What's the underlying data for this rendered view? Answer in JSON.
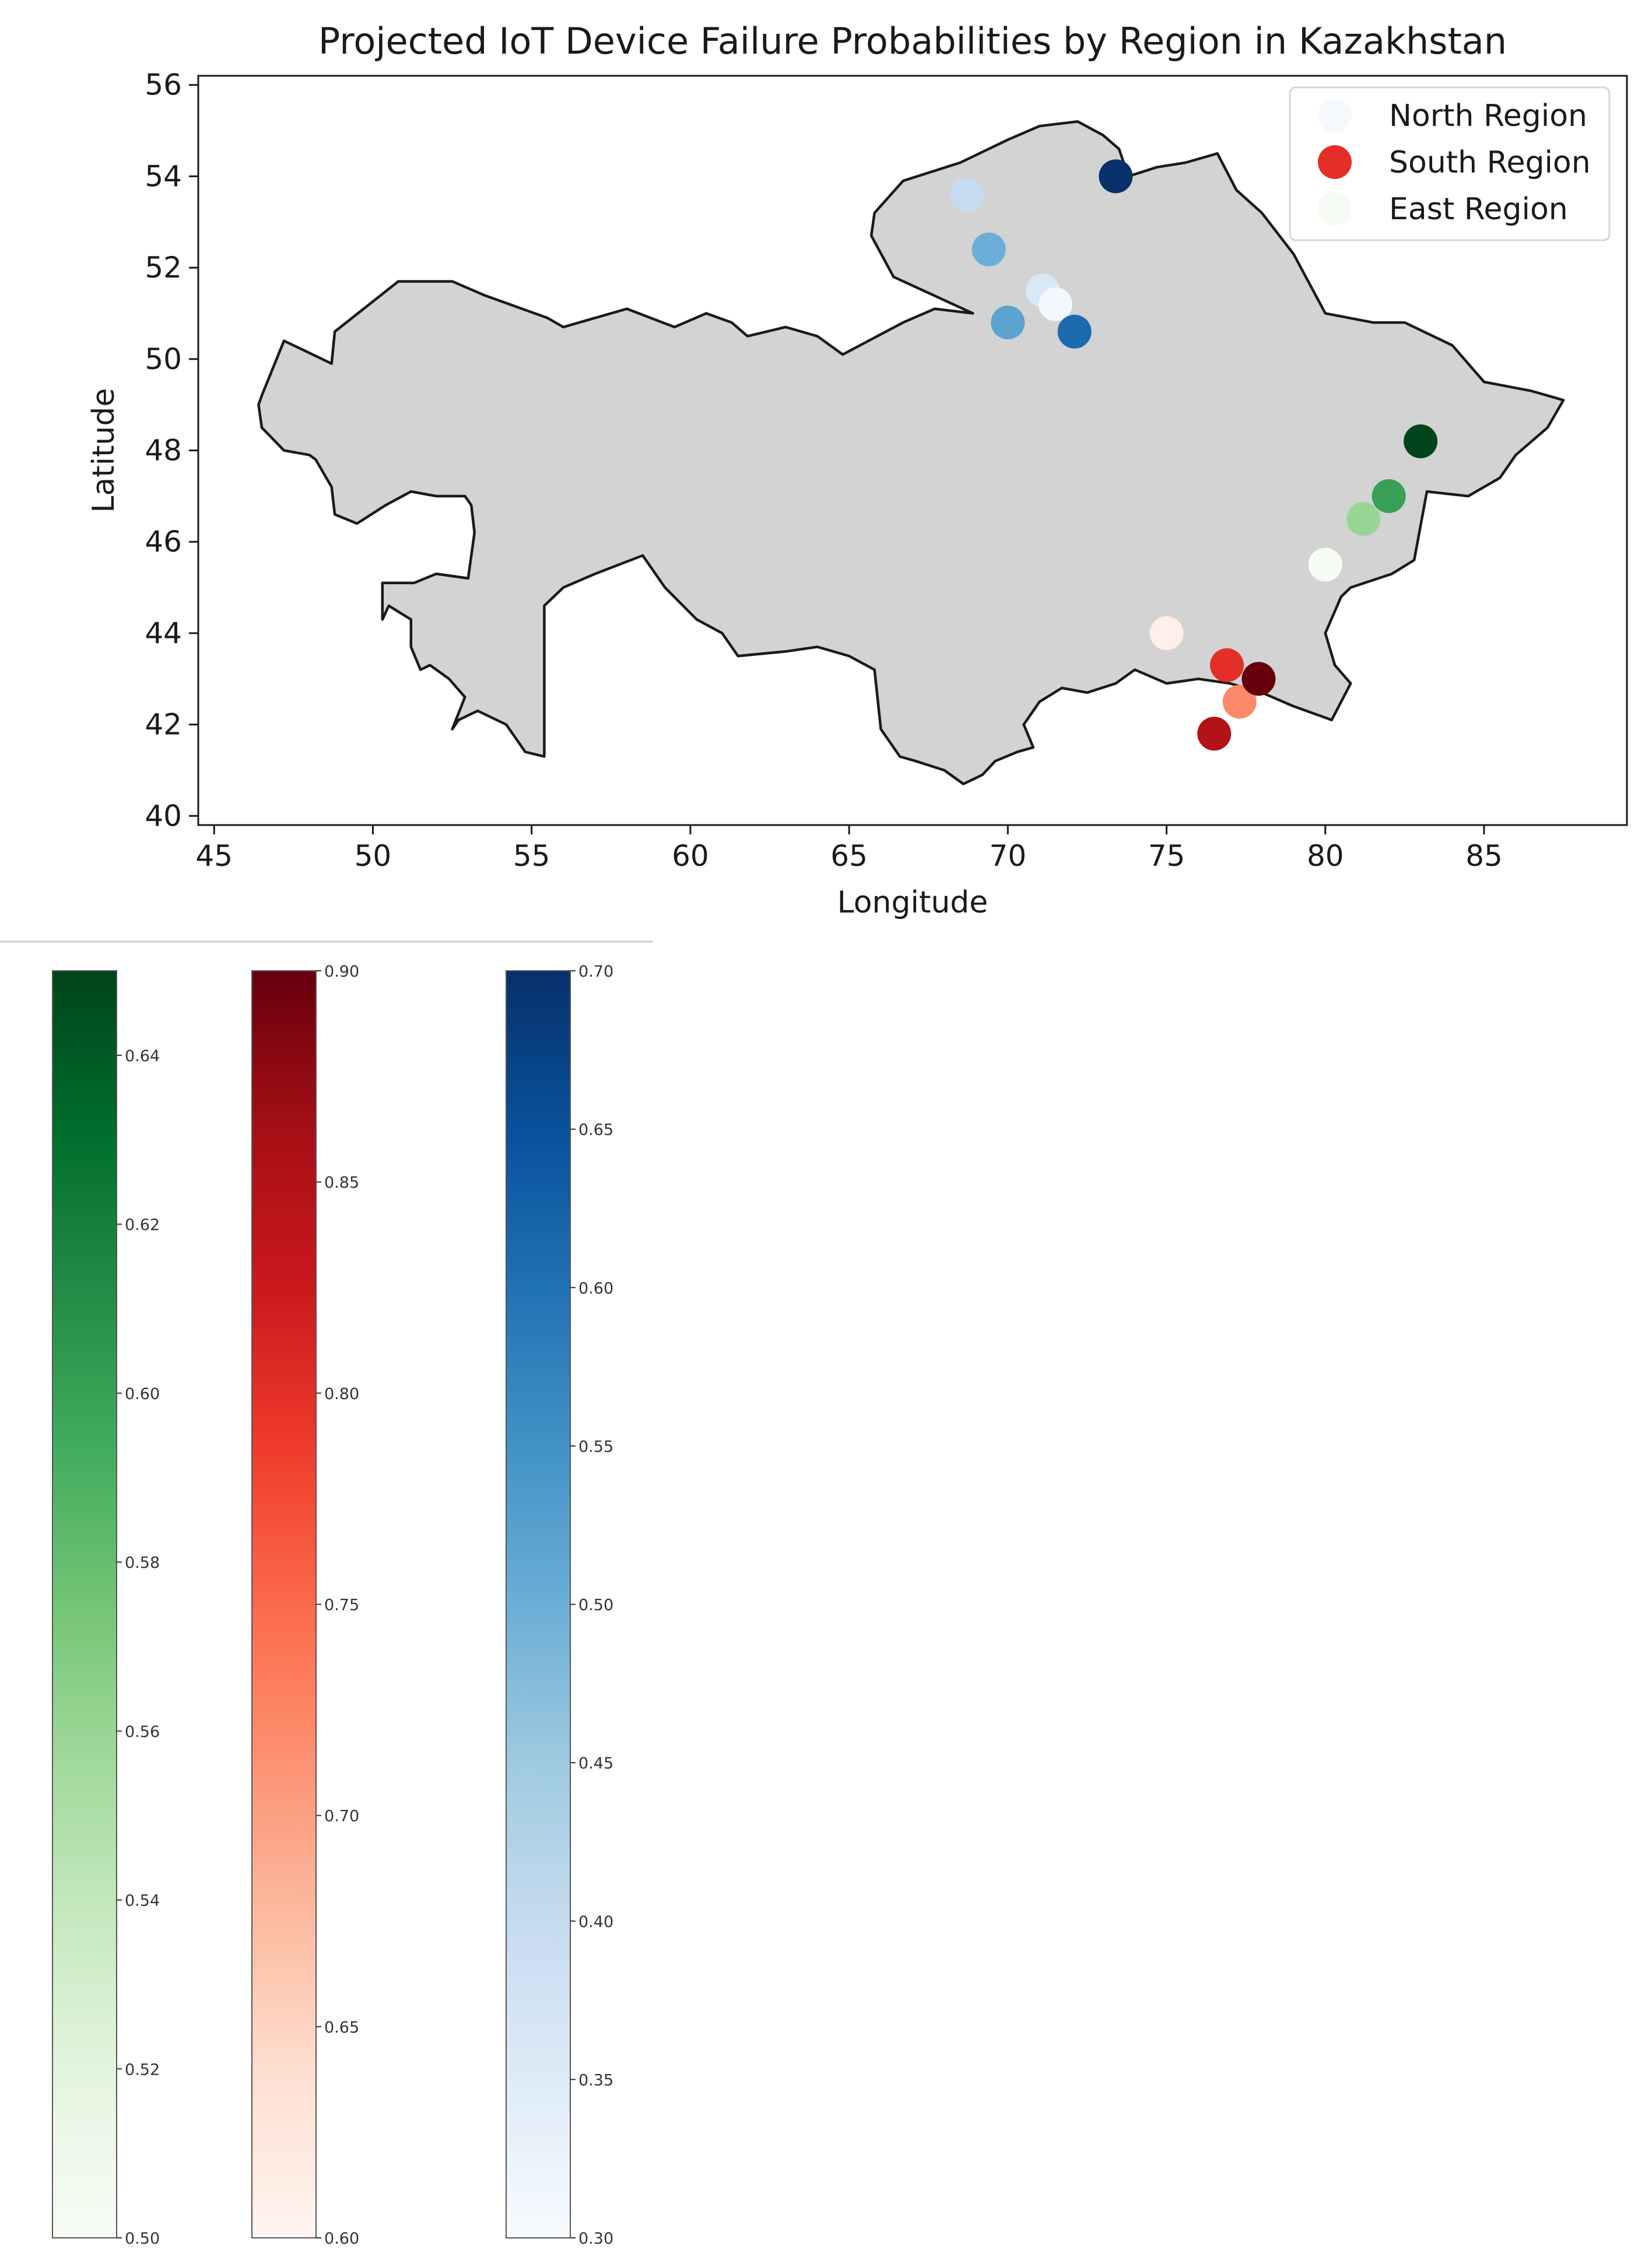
{
  "chart_data": [
    {
      "type": "scatter",
      "subtype": "geographic map",
      "title": "Projected IoT Device Failure Probabilities by Region in Kazakhstan",
      "xlabel": "Longitude",
      "ylabel": "Latitude",
      "xlim": [
        44.5,
        89.5
      ],
      "ylim": [
        39.8,
        56.2
      ],
      "xticks": [
        45,
        50,
        55,
        60,
        65,
        70,
        75,
        80,
        85
      ],
      "yticks": [
        40,
        42,
        44,
        46,
        48,
        50,
        52,
        54,
        56
      ],
      "grid": false,
      "legend_position": "top-right",
      "map_fill": "#d3d3d3",
      "map_stroke": "#1a1a1a",
      "outline": [
        [
          46.5,
          49.2
        ],
        [
          47.2,
          50.4
        ],
        [
          48.7,
          49.9
        ],
        [
          48.8,
          50.6
        ],
        [
          50.8,
          51.7
        ],
        [
          52.5,
          51.7
        ],
        [
          53.5,
          51.4
        ],
        [
          55.5,
          50.9
        ],
        [
          56.0,
          50.7
        ],
        [
          58.0,
          51.1
        ],
        [
          59.5,
          50.7
        ],
        [
          60.5,
          51.0
        ],
        [
          61.3,
          50.8
        ],
        [
          61.8,
          50.5
        ],
        [
          63.0,
          50.7
        ],
        [
          64.0,
          50.5
        ],
        [
          64.8,
          50.1
        ],
        [
          66.7,
          50.8
        ],
        [
          67.7,
          51.1
        ],
        [
          68.9,
          51.0
        ],
        [
          66.4,
          51.8
        ],
        [
          65.7,
          52.7
        ],
        [
          65.8,
          53.2
        ],
        [
          66.7,
          53.9
        ],
        [
          68.5,
          54.3
        ],
        [
          70.0,
          54.8
        ],
        [
          71.0,
          55.1
        ],
        [
          72.2,
          55.2
        ],
        [
          73.0,
          54.9
        ],
        [
          73.5,
          54.6
        ],
        [
          73.8,
          54.0
        ],
        [
          74.7,
          54.2
        ],
        [
          75.6,
          54.3
        ],
        [
          76.6,
          54.5
        ],
        [
          77.2,
          53.7
        ],
        [
          78.0,
          53.2
        ],
        [
          79.0,
          52.3
        ],
        [
          80.0,
          51.0
        ],
        [
          81.5,
          50.8
        ],
        [
          82.5,
          50.8
        ],
        [
          84.0,
          50.3
        ],
        [
          85.0,
          49.5
        ],
        [
          86.5,
          49.3
        ],
        [
          87.5,
          49.1
        ],
        [
          87.0,
          48.5
        ],
        [
          86.0,
          47.9
        ],
        [
          85.5,
          47.4
        ],
        [
          84.5,
          47.0
        ],
        [
          83.2,
          47.1
        ],
        [
          82.8,
          45.6
        ],
        [
          82.1,
          45.3
        ],
        [
          80.8,
          45.0
        ],
        [
          80.5,
          44.8
        ],
        [
          80.0,
          44.0
        ],
        [
          80.3,
          43.3
        ],
        [
          80.8,
          42.9
        ],
        [
          80.2,
          42.1
        ],
        [
          79.0,
          42.4
        ],
        [
          78.0,
          42.7
        ],
        [
          77.0,
          42.9
        ],
        [
          76.0,
          43.0
        ],
        [
          75.0,
          42.9
        ],
        [
          74.0,
          43.2
        ],
        [
          73.4,
          42.9
        ],
        [
          72.5,
          42.7
        ],
        [
          71.7,
          42.8
        ],
        [
          71.0,
          42.5
        ],
        [
          70.5,
          42.0
        ],
        [
          70.8,
          41.5
        ],
        [
          70.3,
          41.4
        ],
        [
          69.6,
          41.2
        ],
        [
          69.2,
          40.9
        ],
        [
          68.6,
          40.7
        ],
        [
          68.0,
          41.0
        ],
        [
          67.1,
          41.2
        ],
        [
          66.6,
          41.3
        ],
        [
          66.0,
          41.9
        ],
        [
          65.8,
          43.2
        ],
        [
          65.0,
          43.5
        ],
        [
          64.0,
          43.7
        ],
        [
          63.0,
          43.6
        ],
        [
          61.5,
          43.5
        ],
        [
          61.0,
          44.0
        ],
        [
          60.2,
          44.3
        ],
        [
          59.2,
          45.0
        ],
        [
          58.5,
          45.7
        ],
        [
          57.0,
          45.3
        ],
        [
          56.0,
          45.0
        ],
        [
          55.4,
          44.6
        ],
        [
          55.4,
          41.3
        ],
        [
          54.8,
          41.4
        ],
        [
          54.2,
          42.0
        ],
        [
          53.3,
          42.3
        ],
        [
          52.7,
          42.1
        ],
        [
          52.5,
          41.9
        ],
        [
          52.9,
          42.6
        ],
        [
          52.4,
          43.0
        ],
        [
          51.8,
          43.3
        ],
        [
          51.5,
          43.2
        ],
        [
          51.2,
          43.7
        ],
        [
          51.2,
          44.3
        ],
        [
          50.5,
          44.6
        ],
        [
          50.3,
          44.3
        ],
        [
          50.3,
          45.1
        ],
        [
          51.3,
          45.1
        ],
        [
          52.0,
          45.3
        ],
        [
          53.0,
          45.2
        ],
        [
          53.2,
          46.2
        ],
        [
          53.1,
          46.8
        ],
        [
          52.9,
          47.0
        ],
        [
          52.0,
          47.0
        ],
        [
          51.2,
          47.1
        ],
        [
          50.4,
          46.8
        ],
        [
          49.5,
          46.4
        ],
        [
          48.8,
          46.6
        ],
        [
          48.7,
          47.2
        ],
        [
          48.2,
          47.8
        ],
        [
          48.0,
          47.9
        ],
        [
          47.2,
          48.0
        ],
        [
          46.5,
          48.5
        ],
        [
          46.4,
          49.0
        ]
      ],
      "series": [
        {
          "name": "North Region",
          "colormap": "Blues",
          "points": [
            {
              "lon": 68.7,
              "lat": 53.6,
              "value": 0.4
            },
            {
              "lon": 69.4,
              "lat": 52.4,
              "value": 0.5
            },
            {
              "lon": 71.1,
              "lat": 51.5,
              "value": 0.36
            },
            {
              "lon": 71.5,
              "lat": 51.2,
              "value": 0.31
            },
            {
              "lon": 70.0,
              "lat": 50.8,
              "value": 0.52
            },
            {
              "lon": 72.1,
              "lat": 50.6,
              "value": 0.61
            },
            {
              "lon": 73.4,
              "lat": 54.0,
              "value": 0.7
            }
          ]
        },
        {
          "name": "South Region",
          "colormap": "Reds",
          "points": [
            {
              "lon": 75.0,
              "lat": 44.0,
              "value": 0.61
            },
            {
              "lon": 76.9,
              "lat": 43.3,
              "value": 0.8
            },
            {
              "lon": 77.3,
              "lat": 42.5,
              "value": 0.72
            },
            {
              "lon": 76.5,
              "lat": 41.8,
              "value": 0.85
            },
            {
              "lon": 77.9,
              "lat": 43.0,
              "value": 0.9
            }
          ]
        },
        {
          "name": "East Region",
          "colormap": "Greens",
          "points": [
            {
              "lon": 80.0,
              "lat": 45.5,
              "value": 0.5
            },
            {
              "lon": 81.2,
              "lat": 46.5,
              "value": 0.56
            },
            {
              "lon": 82.0,
              "lat": 47.0,
              "value": 0.6
            },
            {
              "lon": 83.0,
              "lat": 48.2,
              "value": 0.65
            }
          ]
        }
      ],
      "legend_marker_colors": [
        "#f5f9fe",
        "#e32f27",
        "#f5fbf3"
      ]
    },
    {
      "type": "colorbar",
      "series_name": "East Region",
      "colormap": "Greens",
      "range": [
        0.5,
        0.65
      ],
      "ticks": [
        "0.50",
        "0.52",
        "0.54",
        "0.56",
        "0.58",
        "0.60",
        "0.62",
        "0.64"
      ]
    },
    {
      "type": "colorbar",
      "series_name": "South Region",
      "colormap": "Reds",
      "range": [
        0.6,
        0.9
      ],
      "ticks": [
        "0.60",
        "0.65",
        "0.70",
        "0.75",
        "0.80",
        "0.85",
        "0.90"
      ]
    },
    {
      "type": "colorbar",
      "series_name": "North Region",
      "colormap": "Blues",
      "range": [
        0.3,
        0.7
      ],
      "ticks": [
        "0.30",
        "0.35",
        "0.40",
        "0.45",
        "0.50",
        "0.55",
        "0.60",
        "0.65",
        "0.70"
      ]
    }
  ],
  "colormaps": {
    "Blues": [
      "#f7fbff",
      "#deebf7",
      "#c6dbef",
      "#9ecae1",
      "#6baed6",
      "#4292c6",
      "#2171b5",
      "#08519c",
      "#08306b"
    ],
    "Reds": [
      "#fff5f0",
      "#fee0d2",
      "#fcbba1",
      "#fc9272",
      "#fb6a4a",
      "#ef3b2c",
      "#cb181d",
      "#a50f15",
      "#67000d"
    ],
    "Greens": [
      "#f7fcf5",
      "#e5f5e0",
      "#c7e9c0",
      "#a1d99b",
      "#74c476",
      "#41ab5d",
      "#238b45",
      "#006d2c",
      "#00441b"
    ]
  }
}
